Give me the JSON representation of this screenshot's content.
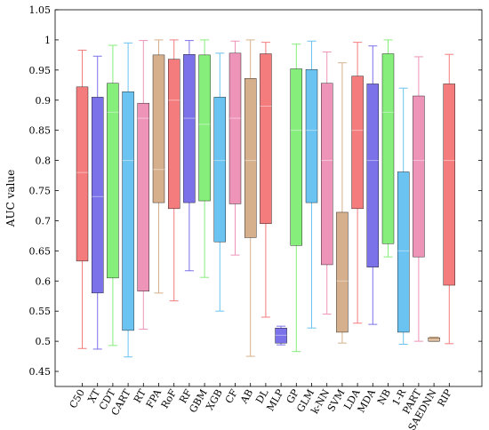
{
  "chart_data": {
    "type": "box",
    "title": "",
    "xlabel": "",
    "ylabel": "AUC value",
    "ylim": [
      0.425,
      1.05
    ],
    "yticks": [
      0.45,
      0.5,
      0.55,
      0.6,
      0.65,
      0.7,
      0.75,
      0.8,
      0.85,
      0.9,
      0.95,
      1,
      1.05
    ],
    "ytick_labels": [
      "0.45",
      "0.5",
      "0.55",
      "0.6",
      "0.65",
      "0.7",
      "0.75",
      "0.8",
      "0.85",
      "0.9",
      "0.95",
      "1",
      "1.05"
    ],
    "grid": false,
    "legend": "none",
    "categories": [
      "C50",
      "XT",
      "CDT",
      "CART",
      "RT",
      "FPA",
      "RoF",
      "RF",
      "GBM",
      "XGB",
      "CF",
      "AB",
      "DL",
      "MLP",
      "GP",
      "GLM",
      "k-NN",
      "SVM",
      "LDA",
      "MDA",
      "NB",
      "1-R",
      "PART",
      "SAEDNN",
      "RIP"
    ],
    "colors": [
      "#f47c7c",
      "#7b72e9",
      "#86ee7a",
      "#6bc3f2",
      "#ee94b9",
      "#d6b08c",
      "#f47c7c",
      "#7b72e9",
      "#86ee7a",
      "#6bc3f2",
      "#ee94b9",
      "#d6b08c",
      "#f47c7c",
      "#7b72e9",
      "#86ee7a",
      "#6bc3f2",
      "#ee94b9",
      "#d6b08c",
      "#f47c7c",
      "#7b72e9",
      "#86ee7a",
      "#6bc3f2",
      "#ee94b9",
      "#d6b08c",
      "#f47c7c"
    ],
    "boxes": [
      {
        "min": 0.488,
        "q1": 0.633,
        "median": 0.78,
        "q3": 0.922,
        "max": 0.983
      },
      {
        "min": 0.487,
        "q1": 0.58,
        "median": 0.74,
        "q3": 0.905,
        "max": 0.973
      },
      {
        "min": 0.493,
        "q1": 0.605,
        "median": 0.88,
        "q3": 0.928,
        "max": 0.991
      },
      {
        "min": 0.474,
        "q1": 0.518,
        "median": 0.8,
        "q3": 0.914,
        "max": 0.995
      },
      {
        "min": 0.52,
        "q1": 0.583,
        "median": 0.87,
        "q3": 0.895,
        "max": 0.999
      },
      {
        "min": 0.58,
        "q1": 0.73,
        "median": 0.785,
        "q3": 0.975,
        "max": 1.0
      },
      {
        "min": 0.567,
        "q1": 0.72,
        "median": 0.9,
        "q3": 0.968,
        "max": 1.0
      },
      {
        "min": 0.617,
        "q1": 0.73,
        "median": 0.87,
        "q3": 0.976,
        "max": 0.999
      },
      {
        "min": 0.606,
        "q1": 0.733,
        "median": 0.86,
        "q3": 0.975,
        "max": 1.0
      },
      {
        "min": 0.55,
        "q1": 0.665,
        "median": 0.8,
        "q3": 0.905,
        "max": 0.978
      },
      {
        "min": 0.643,
        "q1": 0.728,
        "median": 0.87,
        "q3": 0.978,
        "max": 0.998
      },
      {
        "min": 0.475,
        "q1": 0.672,
        "median": 0.8,
        "q3": 0.936,
        "max": 1.0
      },
      {
        "min": 0.54,
        "q1": 0.695,
        "median": 0.89,
        "q3": 0.977,
        "max": 0.996
      },
      {
        "min": 0.494,
        "q1": 0.497,
        "median": 0.51,
        "q3": 0.522,
        "max": 0.525
      },
      {
        "min": 0.483,
        "q1": 0.659,
        "median": 0.85,
        "q3": 0.952,
        "max": 0.993
      },
      {
        "min": 0.522,
        "q1": 0.73,
        "median": 0.85,
        "q3": 0.951,
        "max": 0.998
      },
      {
        "min": 0.545,
        "q1": 0.627,
        "median": 0.8,
        "q3": 0.928,
        "max": 0.98
      },
      {
        "min": 0.497,
        "q1": 0.515,
        "median": 0.6,
        "q3": 0.714,
        "max": 0.962
      },
      {
        "min": 0.53,
        "q1": 0.72,
        "median": 0.85,
        "q3": 0.94,
        "max": 0.996
      },
      {
        "min": 0.528,
        "q1": 0.623,
        "median": 0.8,
        "q3": 0.927,
        "max": 0.99
      },
      {
        "min": 0.64,
        "q1": 0.662,
        "median": 0.88,
        "q3": 0.977,
        "max": 1.0
      },
      {
        "min": 0.495,
        "q1": 0.515,
        "median": 0.65,
        "q3": 0.781,
        "max": 0.92
      },
      {
        "min": 0.5,
        "q1": 0.64,
        "median": 0.8,
        "q3": 0.907,
        "max": 0.972
      },
      {
        "min": 0.5,
        "q1": 0.5,
        "median": 0.502,
        "q3": 0.506,
        "max": 0.507
      },
      {
        "min": 0.496,
        "q1": 0.593,
        "median": 0.8,
        "q3": 0.927,
        "max": 0.976
      }
    ]
  }
}
